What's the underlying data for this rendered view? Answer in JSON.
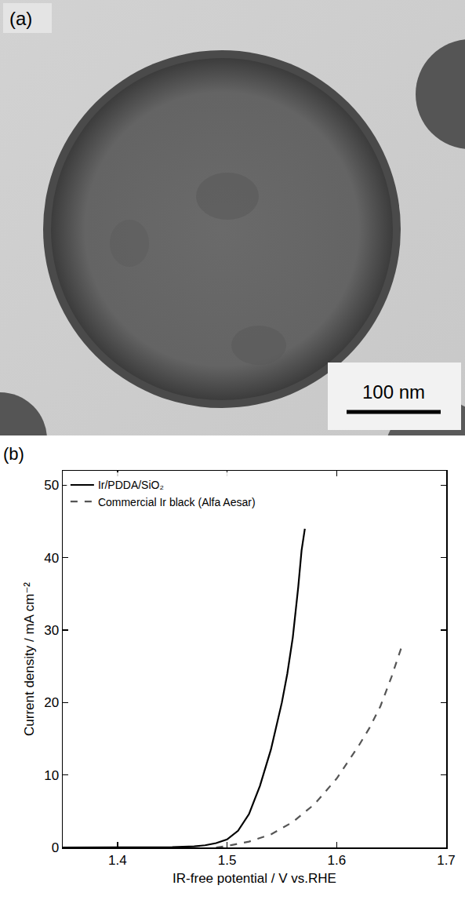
{
  "panel_a": {
    "label": "(a)",
    "scale_bar": "100 nm"
  },
  "chart_data": {
    "type": "line",
    "annotations": [
      "(b)"
    ],
    "x_label": "IR-free potential / V vs.RHE",
    "y_label": "Current density / mA cm⁻²",
    "xlim": [
      1.35,
      1.7
    ],
    "xticks": [
      1.4,
      1.5,
      1.6,
      1.7
    ],
    "ylim": [
      0,
      52
    ],
    "yticks": [
      0,
      10,
      20,
      30,
      40,
      50
    ],
    "grid": false,
    "legend": "top-left",
    "series": [
      {
        "name": "Ir/PDDA/SiO₂",
        "color": "#000000",
        "line_style": "solid",
        "x": [
          1.35,
          1.4,
          1.45,
          1.47,
          1.48,
          1.49,
          1.5,
          1.51,
          1.52,
          1.53,
          1.54,
          1.55,
          1.555,
          1.56,
          1.565,
          1.568,
          1.571
        ],
        "values": [
          0,
          0,
          0.05,
          0.15,
          0.3,
          0.6,
          1.1,
          2.3,
          4.6,
          8.5,
          13.5,
          20,
          24,
          29,
          36,
          41,
          44
        ]
      },
      {
        "name": "Commercial Ir black (Alfa Aesar)",
        "color": "#555555",
        "line_style": "dash",
        "x": [
          1.49,
          1.5,
          1.52,
          1.54,
          1.56,
          1.58,
          1.6,
          1.62,
          1.63,
          1.64,
          1.65,
          1.66
        ],
        "values": [
          0,
          0.2,
          0.8,
          1.8,
          3.5,
          6,
          9.5,
          14,
          16.5,
          19.5,
          23.5,
          28
        ]
      }
    ]
  }
}
